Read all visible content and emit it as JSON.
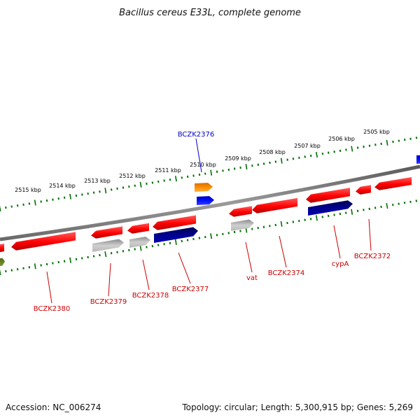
{
  "title": "Bacillus cereus E33L, complete genome",
  "footer": {
    "accession": "Accession: NC_006274",
    "summary": "Topology: circular; Length: 5,300,915 bp; Genes: 5,269"
  },
  "colors": {
    "red": "#ff0000",
    "darkred": "#b00000",
    "gray": "#a8a8a8",
    "navy": "#000080",
    "blue": "#0000ff",
    "orange": "#ff8c00",
    "olive": "#6b8e23",
    "tick_green": "#007000",
    "label_red": "#cc0000",
    "label_blue": "#0000cc"
  },
  "scale_labels": [
    "2505 kbp",
    "2506 kbp",
    "2507 kbp",
    "2508 kbp",
    "2509 kbp",
    "2510 kbp",
    "2511 kbp",
    "2512 kbp",
    "2513 kbp",
    "2514 kbp",
    "2515 kbp"
  ],
  "gene_labels": {
    "top": [
      "BCZK2376"
    ],
    "bottom": [
      "BCZK2380",
      "BCZK2379",
      "BCZK2378",
      "BCZK2377",
      "vat",
      "BCZK2374",
      "cypA",
      "BCZK2372"
    ]
  }
}
